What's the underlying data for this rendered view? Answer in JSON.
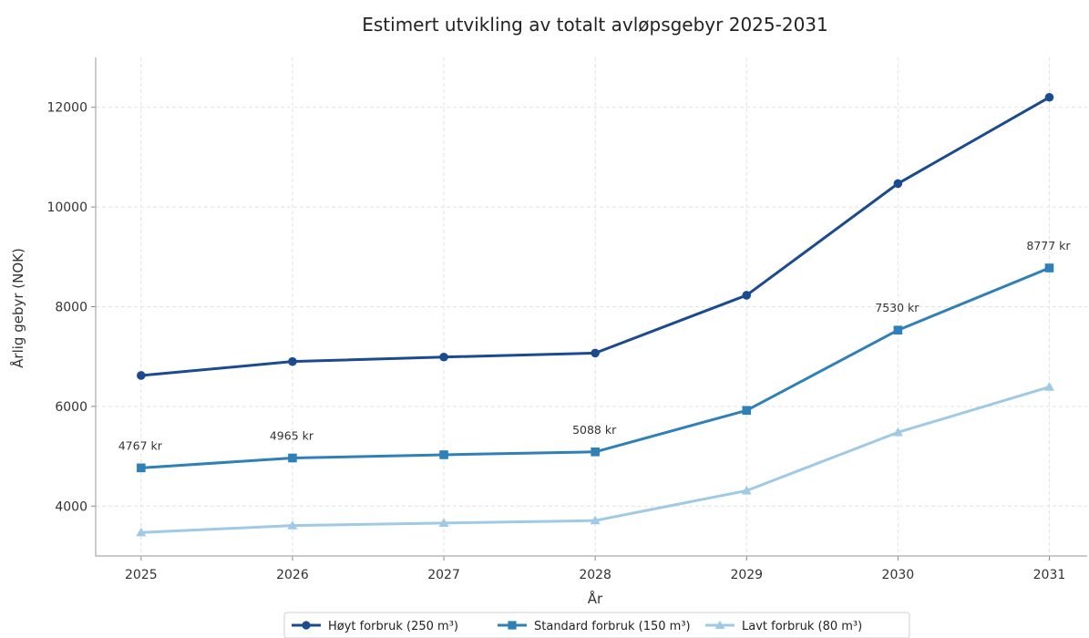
{
  "chart_data": {
    "type": "line",
    "title": "Estimert utvikling av totalt avløpsgebyr 2025-2031",
    "xlabel": "År",
    "ylabel": "Årlig gebyr (NOK)",
    "x": [
      2025,
      2026,
      2027,
      2028,
      2029,
      2030,
      2031
    ],
    "xlim": [
      2024.7,
      2031.25
    ],
    "ylim": [
      3000,
      13000
    ],
    "yticks": [
      4000,
      6000,
      8000,
      10000,
      12000
    ],
    "grid": true,
    "legend_position": "bottom-center",
    "series": [
      {
        "name": "Høyt forbruk (250 m³)",
        "marker": "circle",
        "color": "#1a4a8f",
        "values": [
          6620,
          6900,
          6990,
          7070,
          8230,
          10470,
          12200
        ]
      },
      {
        "name": "Standard forbruk (150 m³)",
        "marker": "square",
        "color": "#2f80b8",
        "values": [
          4767,
          4965,
          5030,
          5088,
          5920,
          7530,
          8777
        ]
      },
      {
        "name": "Lavt forbruk (80 m³)",
        "marker": "triangle",
        "color": "#9ecae6",
        "values": [
          3470,
          3610,
          3660,
          3710,
          4310,
          5480,
          6390
        ]
      }
    ],
    "annotations": [
      {
        "series": 1,
        "index": 0,
        "text": "4767 kr"
      },
      {
        "series": 1,
        "index": 1,
        "text": "4965 kr"
      },
      {
        "series": 1,
        "index": 3,
        "text": "5088 kr"
      },
      {
        "series": 1,
        "index": 5,
        "text": "7530 kr"
      },
      {
        "series": 1,
        "index": 6,
        "text": "8777 kr"
      }
    ]
  }
}
